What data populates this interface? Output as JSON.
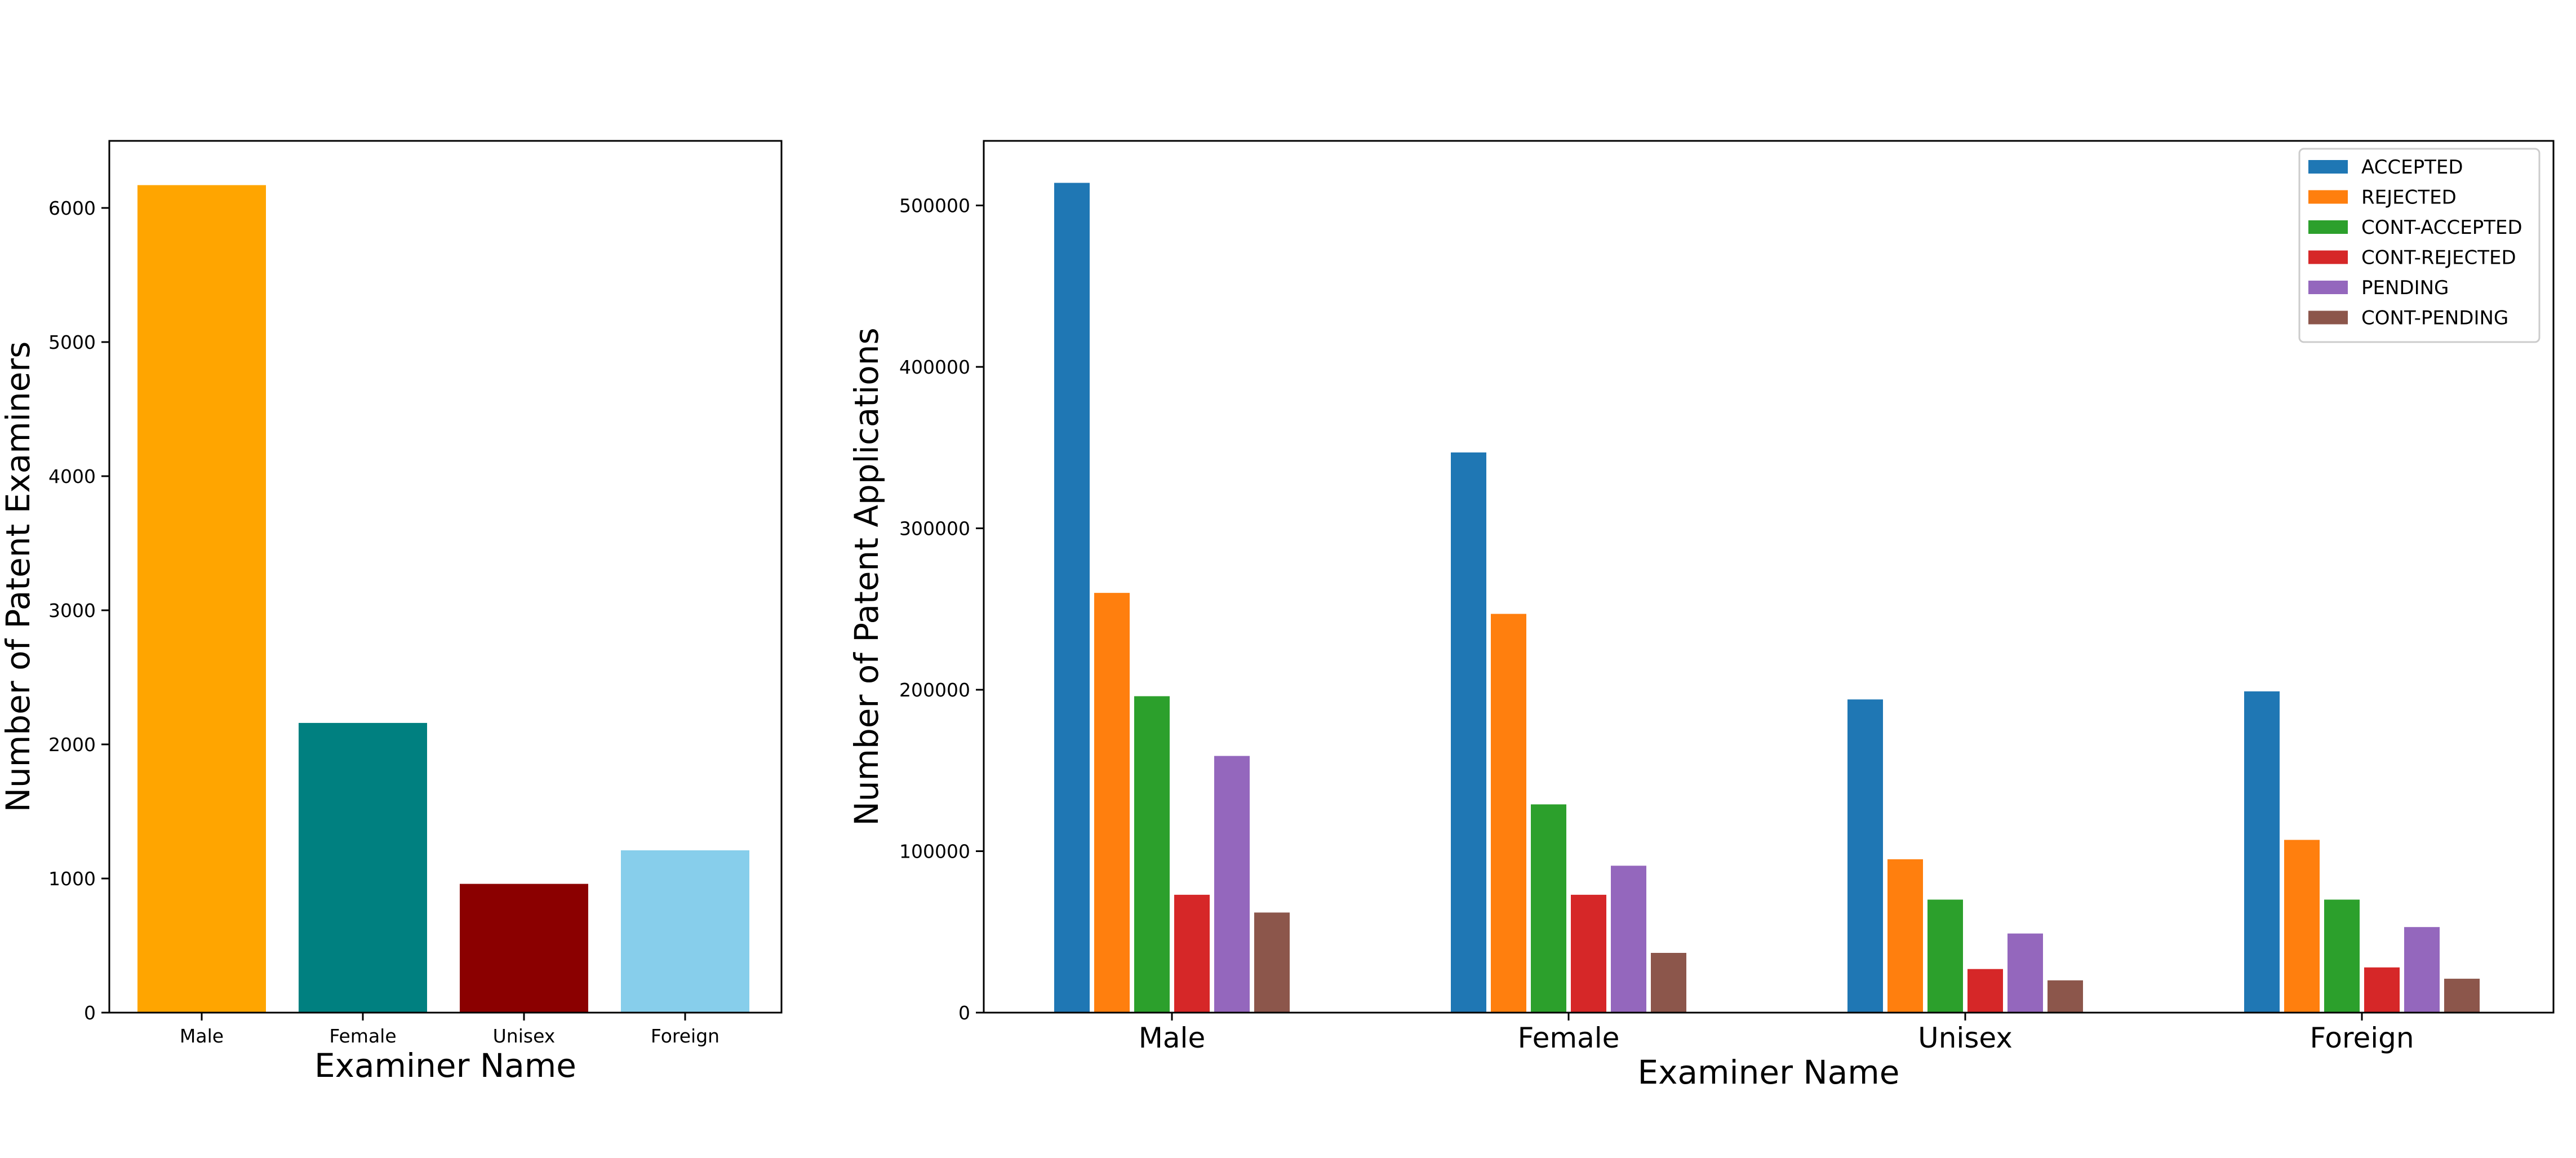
{
  "chart_data": [
    {
      "type": "bar",
      "title": "",
      "xlabel": "Examiner Name",
      "ylabel": "Number of Patent Examiners",
      "categories": [
        "Male",
        "Female",
        "Unisex",
        "Foreign"
      ],
      "values": [
        6170,
        2160,
        960,
        1210
      ],
      "colors": [
        "#ffa500",
        "#008080",
        "#8b0000",
        "#87ceeb"
      ],
      "ylim": [
        0,
        6500
      ],
      "yticks": [
        0,
        1000,
        2000,
        3000,
        4000,
        5000,
        6000
      ],
      "grid": false
    },
    {
      "type": "bar",
      "title": "",
      "xlabel": "Examiner Name",
      "ylabel": "Number of Patent Applications",
      "categories": [
        "Male",
        "Female",
        "Unisex",
        "Foreign"
      ],
      "series": [
        {
          "name": "ACCEPTED",
          "color": "#1f77b4",
          "values": [
            514000,
            347000,
            194000,
            199000
          ]
        },
        {
          "name": "REJECTED",
          "color": "#ff7f0e",
          "values": [
            260000,
            247000,
            95000,
            107000
          ]
        },
        {
          "name": "CONT-ACCEPTED",
          "color": "#2ca02c",
          "values": [
            196000,
            129000,
            70000,
            70000
          ]
        },
        {
          "name": "CONT-REJECTED",
          "color": "#d62728",
          "values": [
            73000,
            73000,
            27000,
            28000
          ]
        },
        {
          "name": "PENDING",
          "color": "#9467bd",
          "values": [
            159000,
            91000,
            49000,
            53000
          ]
        },
        {
          "name": "CONT-PENDING",
          "color": "#8c564b",
          "values": [
            62000,
            37000,
            20000,
            21000
          ]
        }
      ],
      "ylim": [
        0,
        540000
      ],
      "yticks": [
        0,
        100000,
        200000,
        300000,
        400000,
        500000
      ],
      "legend": "top-right",
      "grid": false
    }
  ]
}
